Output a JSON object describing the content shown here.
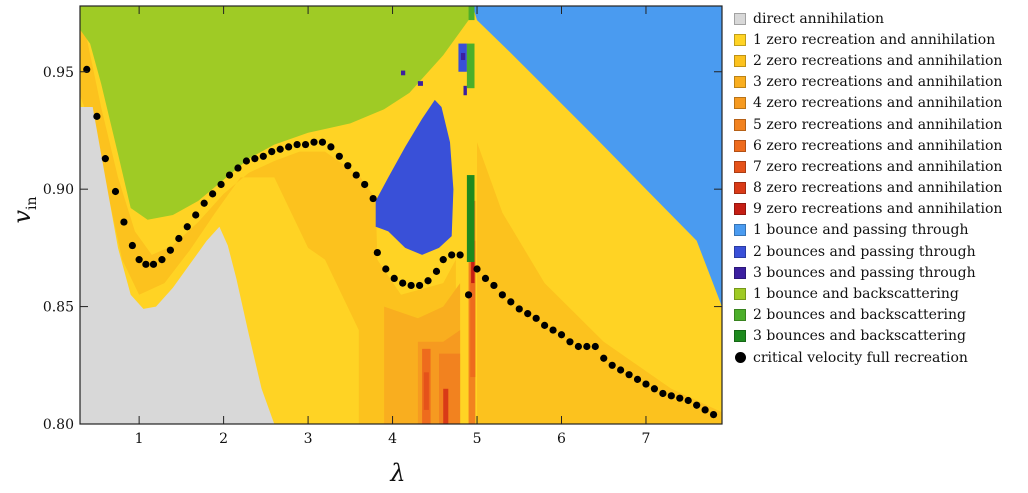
{
  "chart_data": {
    "type": "heatmap",
    "title": "",
    "xlabel": "λ",
    "ylabel": "v",
    "ylabel_sub": "in",
    "xlim": [
      0.3,
      7.9
    ],
    "ylim": [
      0.8,
      0.978
    ],
    "xticks": [
      1,
      2,
      3,
      4,
      5,
      6,
      7
    ],
    "yticks": [
      0.8,
      0.85,
      0.9,
      0.95
    ],
    "ytick_labels": [
      "0.80",
      "0.85",
      "0.90",
      "0.95"
    ],
    "legend_position": "right",
    "categories": [
      {
        "label": "direct annihilation",
        "color": "#d8d8d8"
      },
      {
        "label": "1 zero recreation and annihilation",
        "color": "#ffd324"
      },
      {
        "label": "2 zero recreations and annihilation",
        "color": "#fcc21e"
      },
      {
        "label": "3 zero recreations and annihilation",
        "color": "#f9ae1f"
      },
      {
        "label": "4 zero recreations and annihilation",
        "color": "#f69a20"
      },
      {
        "label": "5 zero recreations and annihilation",
        "color": "#f2821f"
      },
      {
        "label": "6 zero recreations and annihilation",
        "color": "#ee6b1d"
      },
      {
        "label": "7 zero recreations and annihilation",
        "color": "#e5521a"
      },
      {
        "label": "8 zero recreations and annihilation",
        "color": "#d93a17"
      },
      {
        "label": "9 zero recreations and annihilation",
        "color": "#c41e14"
      },
      {
        "label": "1 bounce and passing through",
        "color": "#4a9bf0"
      },
      {
        "label": "2 bounces and passing through",
        "color": "#3950d8"
      },
      {
        "label": "3 bounces and passing through",
        "color": "#3b1fa0"
      },
      {
        "label": "1 bounce and backscattering",
        "color": "#9fcb25"
      },
      {
        "label": "2 bounces and backscattering",
        "color": "#4caf2a"
      },
      {
        "label": "3 bounces and backscattering",
        "color": "#1e8a1e"
      },
      {
        "label": "critical velocity full recreation",
        "color": "#000000",
        "marker": "dot"
      }
    ],
    "critical_velocity": [
      [
        0.38,
        0.951
      ],
      [
        0.5,
        0.931
      ],
      [
        0.6,
        0.913
      ],
      [
        0.72,
        0.899
      ],
      [
        0.82,
        0.886
      ],
      [
        0.92,
        0.876
      ],
      [
        1.0,
        0.87
      ],
      [
        1.08,
        0.868
      ],
      [
        1.17,
        0.868
      ],
      [
        1.27,
        0.87
      ],
      [
        1.37,
        0.874
      ],
      [
        1.47,
        0.879
      ],
      [
        1.57,
        0.884
      ],
      [
        1.67,
        0.889
      ],
      [
        1.77,
        0.894
      ],
      [
        1.87,
        0.898
      ],
      [
        1.97,
        0.902
      ],
      [
        2.07,
        0.906
      ],
      [
        2.17,
        0.909
      ],
      [
        2.27,
        0.912
      ],
      [
        2.37,
        0.913
      ],
      [
        2.47,
        0.914
      ],
      [
        2.57,
        0.916
      ],
      [
        2.67,
        0.917
      ],
      [
        2.77,
        0.918
      ],
      [
        2.87,
        0.919
      ],
      [
        2.97,
        0.919
      ],
      [
        3.07,
        0.92
      ],
      [
        3.17,
        0.92
      ],
      [
        3.27,
        0.918
      ],
      [
        3.37,
        0.914
      ],
      [
        3.47,
        0.91
      ],
      [
        3.57,
        0.906
      ],
      [
        3.67,
        0.902
      ],
      [
        3.77,
        0.896
      ],
      [
        3.82,
        0.873
      ],
      [
        3.92,
        0.866
      ],
      [
        4.02,
        0.862
      ],
      [
        4.12,
        0.86
      ],
      [
        4.22,
        0.859
      ],
      [
        4.32,
        0.859
      ],
      [
        4.42,
        0.861
      ],
      [
        4.52,
        0.865
      ],
      [
        4.6,
        0.87
      ],
      [
        4.7,
        0.872
      ],
      [
        4.8,
        0.872
      ],
      [
        4.9,
        0.855
      ],
      [
        5.0,
        0.866
      ],
      [
        5.1,
        0.862
      ],
      [
        5.2,
        0.859
      ],
      [
        5.3,
        0.855
      ],
      [
        5.4,
        0.852
      ],
      [
        5.5,
        0.849
      ],
      [
        5.6,
        0.847
      ],
      [
        5.7,
        0.845
      ],
      [
        5.8,
        0.842
      ],
      [
        5.9,
        0.84
      ],
      [
        6.0,
        0.838
      ],
      [
        6.1,
        0.835
      ],
      [
        6.2,
        0.833
      ],
      [
        6.3,
        0.833
      ],
      [
        6.4,
        0.833
      ],
      [
        6.5,
        0.828
      ],
      [
        6.6,
        0.825
      ],
      [
        6.7,
        0.823
      ],
      [
        6.8,
        0.821
      ],
      [
        6.9,
        0.819
      ],
      [
        7.0,
        0.817
      ],
      [
        7.1,
        0.815
      ],
      [
        7.2,
        0.813
      ],
      [
        7.3,
        0.812
      ],
      [
        7.4,
        0.811
      ],
      [
        7.5,
        0.81
      ],
      [
        7.6,
        0.808
      ],
      [
        7.7,
        0.806
      ],
      [
        7.8,
        0.804
      ]
    ]
  }
}
